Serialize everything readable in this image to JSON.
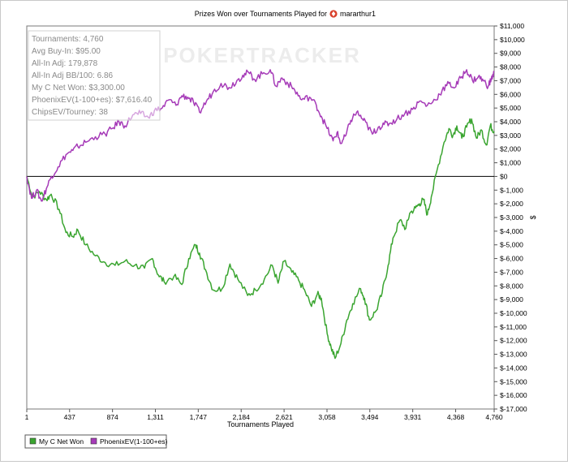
{
  "chart_data": {
    "type": "line",
    "title": "Prizes Won over Tournaments Played for",
    "player": "mararthur1",
    "watermark": "POKERTRACKER",
    "xlabel": "Tournaments Played",
    "ylabel": "$",
    "xlim": [
      1,
      4760
    ],
    "ylim": [
      -17000,
      11000
    ],
    "x_ticks": [
      "1",
      "437",
      "874",
      "1,311",
      "1,747",
      "2,184",
      "2,621",
      "3,058",
      "3,494",
      "3,931",
      "4,368",
      "4,760"
    ],
    "x_tick_values": [
      1,
      437,
      874,
      1311,
      1747,
      2184,
      2621,
      3058,
      3494,
      3931,
      4368,
      4760
    ],
    "y_ticks": [
      "$11,000",
      "$10,000",
      "$9,000",
      "$8,000",
      "$7,000",
      "$6,000",
      "$5,000",
      "$4,000",
      "$3,000",
      "$2,000",
      "$1,000",
      "$0",
      "$-1,000",
      "$-2,000",
      "$-3,000",
      "$-4,000",
      "$-5,000",
      "$-6,000",
      "$-7,000",
      "$-8,000",
      "$-9,000",
      "$-10,000",
      "$-11,000",
      "$-12,000",
      "$-13,000",
      "$-14,000",
      "$-15,000",
      "$-16,000",
      "$-17,000"
    ],
    "y_tick_values": [
      11000,
      10000,
      9000,
      8000,
      7000,
      6000,
      5000,
      4000,
      3000,
      2000,
      1000,
      0,
      -1000,
      -2000,
      -3000,
      -4000,
      -5000,
      -6000,
      -7000,
      -8000,
      -9000,
      -10000,
      -11000,
      -12000,
      -13000,
      -14000,
      -15000,
      -16000,
      -17000
    ],
    "zero_line": true,
    "grid": false,
    "legend_position": "bottom-left",
    "stats": [
      "Tournaments: 4,760",
      "Avg Buy-In: $95.00",
      "All-In Adj: 179,878",
      "All-In Adj BB/100: 6.86",
      "My C Net Won: $3,300.00",
      "PhoenixEV(1-100+es): $7,616.40",
      "ChipsEV/Tourney: 38"
    ],
    "series": [
      {
        "name": "My C Net Won",
        "color": "#3aa530",
        "x": [
          1,
          60,
          130,
          200,
          250,
          330,
          400,
          470,
          520,
          600,
          700,
          800,
          900,
          1000,
          1100,
          1200,
          1280,
          1340,
          1400,
          1500,
          1580,
          1650,
          1720,
          1760,
          1820,
          1900,
          1990,
          2070,
          2150,
          2250,
          2330,
          2420,
          2500,
          2560,
          2620,
          2700,
          2770,
          2840,
          2900,
          2960,
          3000,
          3060,
          3100,
          3140,
          3200,
          3260,
          3320,
          3400,
          3440,
          3490,
          3560,
          3620,
          3680,
          3730,
          3800,
          3860,
          3900,
          3960,
          4000,
          4040,
          4080,
          4120,
          4180,
          4250,
          4300,
          4340,
          4380,
          4430,
          4480,
          4530,
          4580,
          4630,
          4680,
          4720,
          4760
        ],
        "y": [
          0,
          -1500,
          -1100,
          -1700,
          -1300,
          -2400,
          -4100,
          -4400,
          -3900,
          -5000,
          -5800,
          -6300,
          -6500,
          -6200,
          -6500,
          -6700,
          -6000,
          -7200,
          -7700,
          -7300,
          -7900,
          -6000,
          -5000,
          -5600,
          -6800,
          -8300,
          -8200,
          -6400,
          -7500,
          -8700,
          -8300,
          -7500,
          -6500,
          -7800,
          -6200,
          -7000,
          -7600,
          -8500,
          -9500,
          -8600,
          -8900,
          -11500,
          -12500,
          -13300,
          -12200,
          -10500,
          -9300,
          -8200,
          -8900,
          -10500,
          -9800,
          -8500,
          -6500,
          -4500,
          -3200,
          -3800,
          -2700,
          -2300,
          -2000,
          -1700,
          -2800,
          -1500,
          500,
          2500,
          3500,
          3000,
          3700,
          2800,
          3600,
          4200,
          2800,
          3400,
          2300,
          3700,
          3300
        ]
      },
      {
        "name": "PhoenixEV(1-100+es)",
        "color": "#a63bb8",
        "x": [
          1,
          50,
          100,
          150,
          200,
          250,
          320,
          400,
          470,
          520,
          600,
          700,
          800,
          870,
          940,
          1000,
          1080,
          1160,
          1240,
          1300,
          1380,
          1450,
          1520,
          1580,
          1640,
          1700,
          1760,
          1830,
          1900,
          1980,
          2060,
          2140,
          2200,
          2260,
          2320,
          2400,
          2480,
          2540,
          2600,
          2660,
          2730,
          2800,
          2880,
          2950,
          3000,
          3060,
          3120,
          3160,
          3200,
          3250,
          3300,
          3360,
          3420,
          3470,
          3520,
          3580,
          3640,
          3700,
          3770,
          3850,
          3930,
          4000,
          4080,
          4160,
          4230,
          4300,
          4360,
          4420,
          4480,
          4540,
          4600,
          4650,
          4700,
          4730,
          4760
        ],
        "y": [
          0,
          -1600,
          -1000,
          -1800,
          -900,
          0,
          700,
          1600,
          1900,
          2200,
          2500,
          2900,
          3100,
          3500,
          4000,
          3700,
          4500,
          4600,
          4300,
          4800,
          5000,
          5600,
          5200,
          5900,
          5800,
          5400,
          4700,
          5500,
          6200,
          6800,
          6500,
          7000,
          7400,
          7600,
          7100,
          7500,
          7800,
          6600,
          7200,
          6800,
          6300,
          5600,
          5800,
          5200,
          4400,
          3500,
          2600,
          3200,
          2400,
          3000,
          4100,
          4700,
          4200,
          3700,
          3100,
          3600,
          3800,
          3900,
          4200,
          4600,
          4900,
          5500,
          5200,
          5600,
          6300,
          6800,
          6500,
          7200,
          7800,
          7000,
          7300,
          7000,
          6600,
          7100,
          7600
        ]
      }
    ]
  }
}
